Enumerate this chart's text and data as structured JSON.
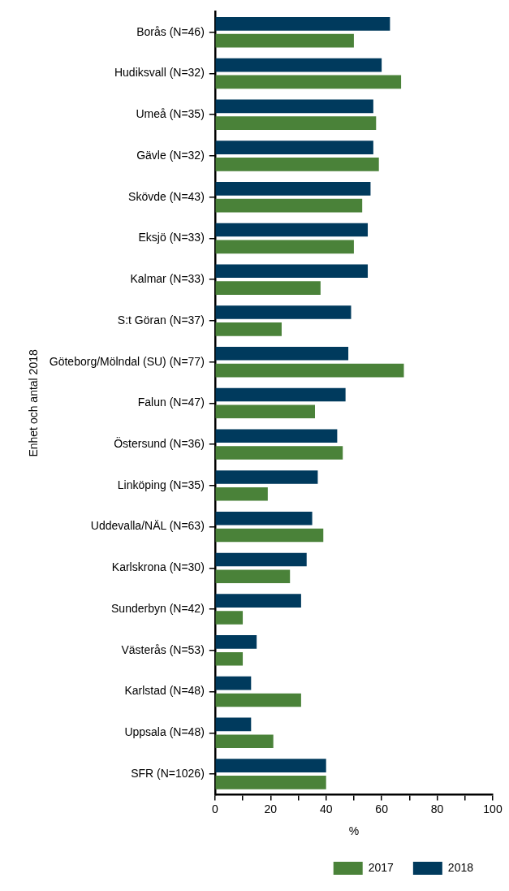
{
  "chart_data": {
    "type": "bar",
    "orientation": "horizontal",
    "xlabel": "%",
    "ylabel": "Enhet och antal 2018",
    "categories": [
      "Borås (N=46)",
      "Hudiksvall (N=32)",
      "Umeå (N=35)",
      "Gävle (N=32)",
      "Skövde (N=43)",
      "Eksjö (N=33)",
      "Kalmar (N=33)",
      "S:t Göran (N=37)",
      "Göteborg/Mölndal (SU) (N=77)",
      "Falun (N=47)",
      "Östersund (N=36)",
      "Linköping (N=35)",
      "Uddevalla/NÄL (N=63)",
      "Karlskrona (N=30)",
      "Sunderbyn (N=42)",
      "Västerås (N=53)",
      "Karlstad (N=48)",
      "Uppsala (N=48)",
      "SFR (N=1026)"
    ],
    "series": [
      {
        "name": "2017",
        "color": "#4a8239",
        "values": [
          50,
          67,
          58,
          59,
          53,
          50,
          38,
          24,
          68,
          36,
          46,
          19,
          39,
          27,
          10,
          10,
          31,
          21,
          40
        ]
      },
      {
        "name": "2018",
        "color": "#003a5d",
        "values": [
          63,
          60,
          57,
          57,
          56,
          55,
          55,
          49,
          48,
          47,
          44,
          37,
          35,
          33,
          31,
          15,
          13,
          13,
          40
        ]
      }
    ],
    "xlim": [
      0,
      100
    ],
    "xticks": [
      0,
      {
        "value": 10,
        "label": null
      },
      20,
      {
        "value": 30,
        "label": null
      },
      40,
      {
        "value": 50,
        "label": null
      },
      60,
      {
        "value": 70,
        "label": null
      },
      80,
      {
        "value": 90,
        "label": null
      },
      100
    ],
    "grid": false,
    "legend": "bottom right"
  }
}
